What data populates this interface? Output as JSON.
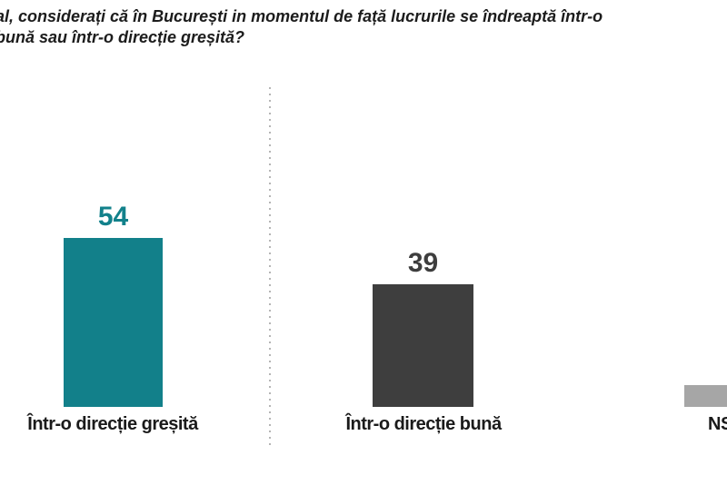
{
  "header": {
    "question_line1": "al, considerați că în București in momentul de față lucrurile se îndreaptă într-o",
    "question_line2": "bună sau într-o direcție greșită?"
  },
  "chart_data": {
    "type": "bar",
    "title": "al, considerați că în București in momentul de față lucrurile se îndreaptă într-o bună sau într-o direcție greșită?",
    "categories": [
      "Într-o direcție greșită",
      "Într-o direcție bună",
      "NS"
    ],
    "values": [
      54,
      39,
      7
    ],
    "bar_colors": [
      "#12808A",
      "#3E3E3E",
      "#A6A6A6"
    ],
    "value_label_colors": [
      "#12818B",
      "#3E3E3E",
      null
    ],
    "value_labels_shown": [
      true,
      true,
      false
    ],
    "xlabel": "",
    "ylabel": "",
    "ylim": [
      0,
      60
    ],
    "grid": false,
    "legend": "none",
    "divider_color": "#B5B5B5",
    "orientation": "vertical"
  }
}
